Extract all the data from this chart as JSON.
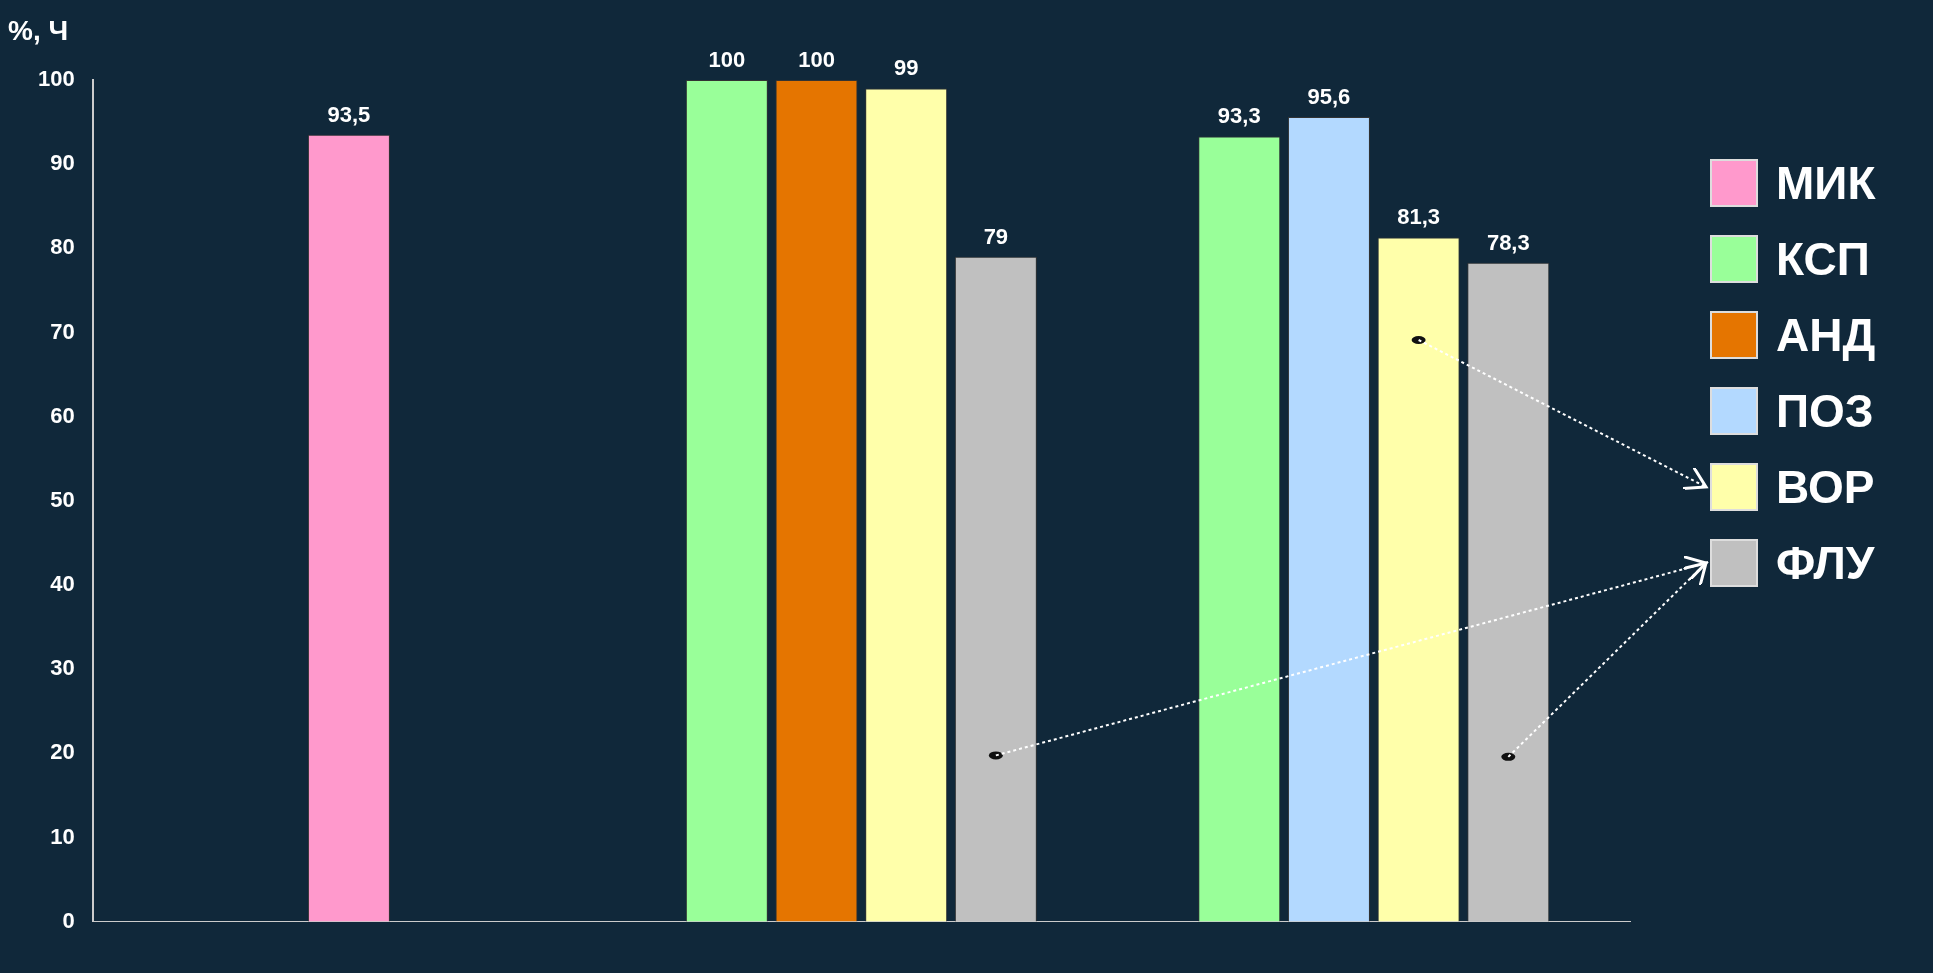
{
  "chart_data": {
    "type": "bar",
    "ylabel": "%, Ч",
    "categories": [
      null,
      null,
      null
    ],
    "series": [
      {
        "name": "МИК",
        "color": "#ff99cc",
        "values": [
          93.5,
          null,
          null
        ],
        "value_labels": [
          "93,5",
          null,
          null
        ]
      },
      {
        "name": "КСП",
        "color": "#99ff99",
        "values": [
          null,
          100,
          93.3
        ],
        "value_labels": [
          null,
          "100",
          "93,3"
        ]
      },
      {
        "name": "АНД",
        "color": "#e57500",
        "values": [
          null,
          100,
          null
        ],
        "value_labels": [
          null,
          "100",
          null
        ]
      },
      {
        "name": "ПОЗ",
        "color": "#b3d9ff",
        "values": [
          null,
          null,
          95.6
        ],
        "value_labels": [
          null,
          null,
          "95,6"
        ]
      },
      {
        "name": "ВОР",
        "color": "#ffffaa",
        "values": [
          null,
          99,
          81.3
        ],
        "value_labels": [
          null,
          "99",
          "81,3"
        ]
      },
      {
        "name": "ФЛУ",
        "color": "#c0c0c0",
        "values": [
          null,
          79,
          78.3
        ],
        "value_labels": [
          null,
          "79",
          "78,3"
        ]
      }
    ],
    "ylim": [
      0,
      100
    ],
    "yticks": [
      0,
      10,
      20,
      30,
      40,
      50,
      60,
      70,
      80,
      90,
      100
    ],
    "grid": false,
    "legend": "right"
  }
}
